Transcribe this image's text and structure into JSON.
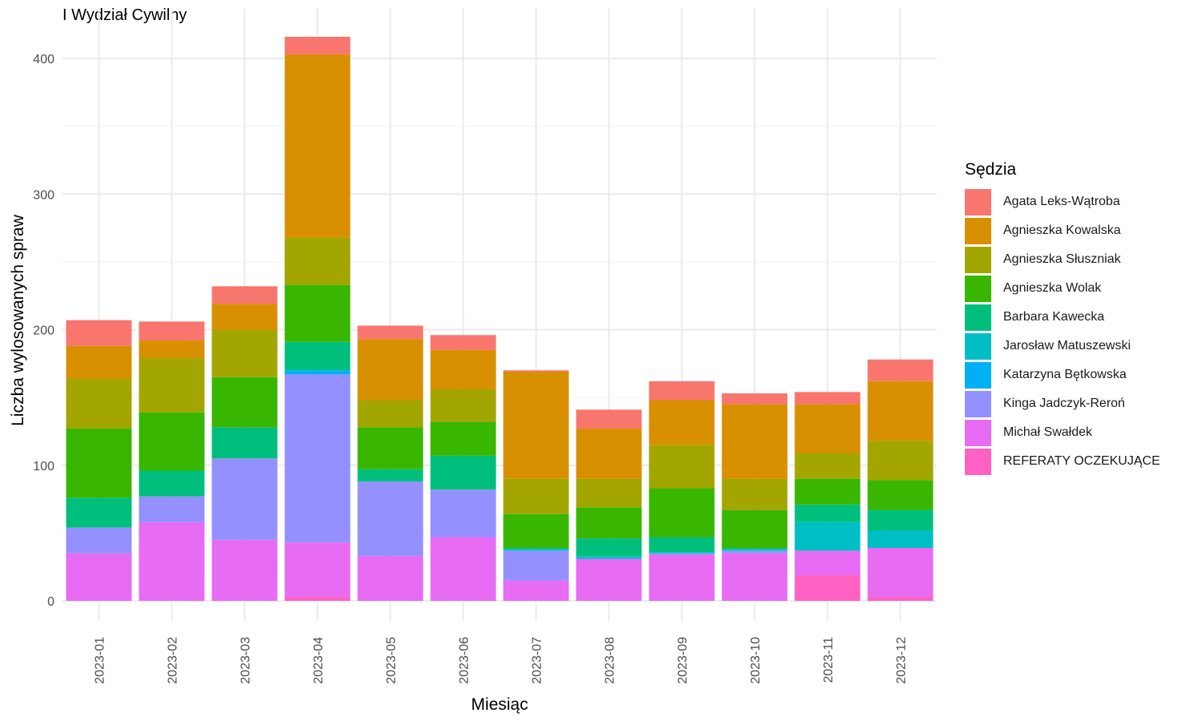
{
  "chart_data": {
    "type": "bar",
    "stacked": true,
    "title": "I Wydział Cywilny",
    "xlabel": "Miesiąc",
    "ylabel": "Liczba wylosowanych spraw",
    "ylim": [
      0,
      420
    ],
    "yticks": [
      0,
      100,
      200,
      300,
      400
    ],
    "grid": true,
    "legend_title": "Sędzia",
    "legend_position": "right",
    "categories": [
      "2023-01",
      "2023-02",
      "2023-03",
      "2023-04",
      "2023-05",
      "2023-06",
      "2023-07",
      "2023-08",
      "2023-09",
      "2023-10",
      "2023-11",
      "2023-12"
    ],
    "series": [
      {
        "name": "REFERATY OCZEKUJĄCE",
        "color": "#FF61C3",
        "values": [
          0,
          0,
          0,
          3,
          0,
          0,
          0,
          0,
          0,
          0,
          19,
          3
        ]
      },
      {
        "name": "Michał Swałdek",
        "color": "#E76BF3",
        "values": [
          35,
          58,
          45,
          40,
          33,
          47,
          15,
          31,
          34,
          35,
          18,
          36
        ]
      },
      {
        "name": "Kinga Jadczyk-Reroń",
        "color": "#9590FF",
        "values": [
          19,
          19,
          60,
          124,
          55,
          35,
          22,
          0,
          1,
          2,
          0,
          0
        ]
      },
      {
        "name": "Katarzyna Bętkowska",
        "color": "#00B0F6",
        "values": [
          0,
          0,
          0,
          3,
          0,
          0,
          0,
          0,
          0,
          0,
          0,
          0
        ]
      },
      {
        "name": "Jarosław Matuszewski",
        "color": "#00BFC4",
        "values": [
          0,
          0,
          0,
          0,
          0,
          0,
          1,
          2,
          1,
          1,
          21,
          13
        ]
      },
      {
        "name": "Barbara Kawecka",
        "color": "#00BF7D",
        "values": [
          22,
          19,
          23,
          21,
          9,
          25,
          1,
          13,
          11,
          1,
          13,
          15
        ]
      },
      {
        "name": "Agnieszka Wolak",
        "color": "#39B600",
        "values": [
          51,
          43,
          37,
          42,
          31,
          25,
          25,
          23,
          36,
          28,
          19,
          22
        ]
      },
      {
        "name": "Agnieszka Słuszniak",
        "color": "#A3A500",
        "values": [
          37,
          40,
          35,
          35,
          20,
          24,
          26,
          21,
          32,
          23,
          19,
          29
        ]
      },
      {
        "name": "Agnieszka Kowalska",
        "color": "#D89000",
        "values": [
          24,
          13,
          19,
          135,
          45,
          29,
          79,
          37,
          33,
          55,
          36,
          44
        ]
      },
      {
        "name": "Agata Leks-Wątroba",
        "color": "#F8766D",
        "values": [
          19,
          14,
          13,
          13,
          10,
          11,
          1,
          14,
          14,
          8,
          9,
          16
        ]
      }
    ]
  }
}
